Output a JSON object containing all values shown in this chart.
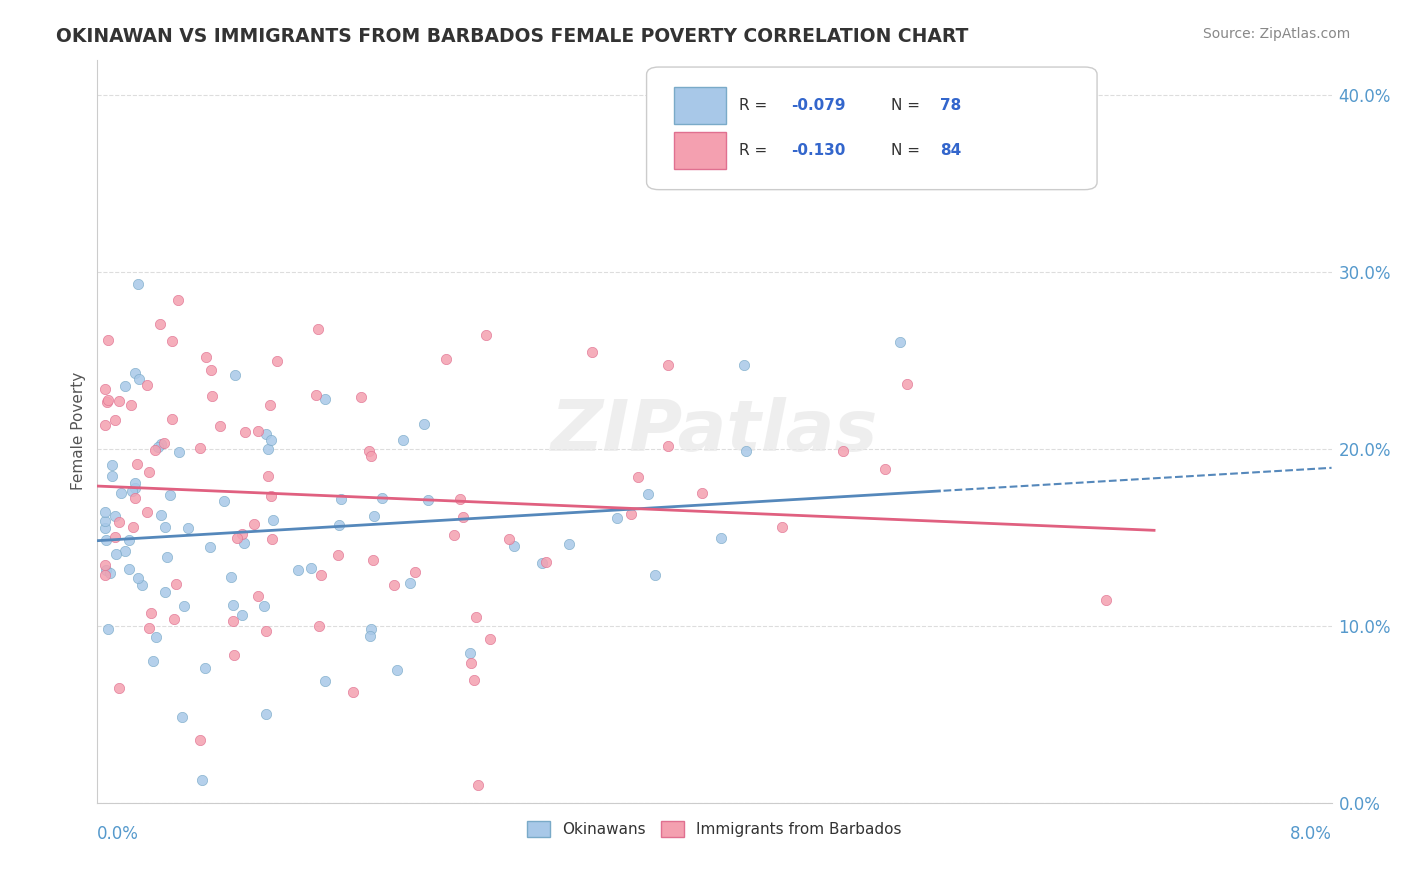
{
  "title": "OKINAWAN VS IMMIGRANTS FROM BARBADOS FEMALE POVERTY CORRELATION CHART",
  "source_text": "Source: ZipAtlas.com",
  "ylabel": "Female Poverty",
  "right_y_ticks": [
    0.0,
    0.1,
    0.2,
    0.3,
    0.4
  ],
  "right_y_tick_labels": [
    "0.0%",
    "10.0%",
    "20.0%",
    "30.0%",
    "40.0%"
  ],
  "xlim": [
    0.0,
    0.08
  ],
  "ylim": [
    0.0,
    0.42
  ],
  "watermark": "ZIPatlas",
  "ok_R": -0.079,
  "ok_N": 78,
  "bar_R": -0.13,
  "bar_N": 84,
  "ok_color": "#a8c8e8",
  "ok_edge": "#7aaac8",
  "ok_line": "#5588bb",
  "bar_color": "#f4a0b0",
  "bar_edge": "#e07090",
  "bar_line": "#e06080",
  "grid_color": "#dddddd",
  "axis_label_color": "#5599cc",
  "title_color": "#333333",
  "source_color": "#888888",
  "ylabel_color": "#555555",
  "watermark_color": "#e8e8e8"
}
